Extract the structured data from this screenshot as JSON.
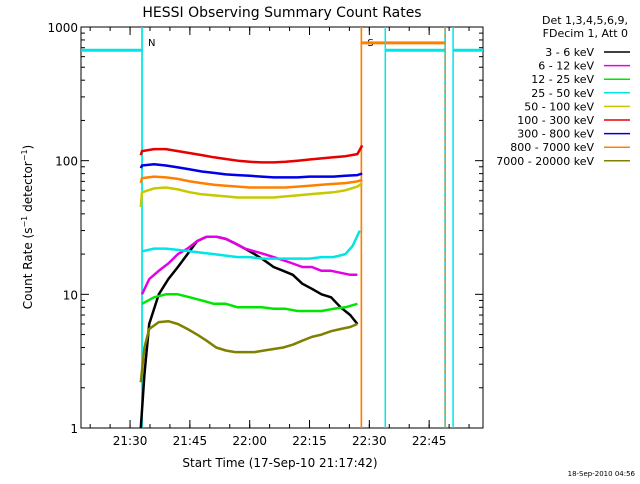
{
  "chart_data": {
    "type": "line",
    "title": "HESSI Observing Summary Count Rates",
    "xlabel": "Start Time (17-Sep-10 21:17:42)",
    "ylabel": "Count Rate (s⁻¹ detector⁻¹)",
    "ylabel_parts": {
      "main": "Count Rate (s",
      "sup1": "−1",
      "mid": " detector",
      "sup2": "−1",
      "end": ")"
    },
    "yscale": "log",
    "ylim": [
      1,
      1000
    ],
    "xlim": [
      "21:17:42",
      "22:58:30"
    ],
    "x_ticks": [
      "21:30",
      "21:45",
      "22:00",
      "22:15",
      "22:30",
      "22:45"
    ],
    "y_ticks": [
      "1",
      "10",
      "100",
      "1000"
    ],
    "legend": {
      "position": "right",
      "header": [
        "Det 1,3,4,5,6,9,",
        "FDecim 1, Att 0"
      ]
    },
    "timestamp": "18-Sep-2010 04:56",
    "series": [
      {
        "name": "3 - 6 keV",
        "color": "#000000",
        "values": [
          [
            21.545,
            1.0
          ],
          [
            21.56,
            2.5
          ],
          [
            21.58,
            6
          ],
          [
            21.62,
            10
          ],
          [
            21.66,
            13
          ],
          [
            21.7,
            16
          ],
          [
            21.74,
            20
          ],
          [
            21.78,
            25
          ],
          [
            21.82,
            27
          ],
          [
            21.86,
            27
          ],
          [
            21.9,
            26
          ],
          [
            21.94,
            24
          ],
          [
            21.98,
            22
          ],
          [
            22.02,
            20
          ],
          [
            22.06,
            18
          ],
          [
            22.1,
            16
          ],
          [
            22.14,
            15
          ],
          [
            22.18,
            14
          ],
          [
            22.22,
            12
          ],
          [
            22.26,
            11
          ],
          [
            22.3,
            10
          ],
          [
            22.34,
            9.5
          ],
          [
            22.38,
            8
          ],
          [
            22.42,
            7
          ],
          [
            22.45,
            6
          ]
        ]
      },
      {
        "name": "6 - 12 keV",
        "color": "#e600e6",
        "values": [
          [
            21.55,
            10
          ],
          [
            21.58,
            13
          ],
          [
            21.62,
            15
          ],
          [
            21.66,
            17
          ],
          [
            21.7,
            20
          ],
          [
            21.74,
            22
          ],
          [
            21.78,
            25
          ],
          [
            21.82,
            27
          ],
          [
            21.86,
            27
          ],
          [
            21.9,
            26
          ],
          [
            21.94,
            24
          ],
          [
            21.98,
            22
          ],
          [
            22.02,
            21
          ],
          [
            22.06,
            20
          ],
          [
            22.1,
            19
          ],
          [
            22.14,
            18
          ],
          [
            22.18,
            17
          ],
          [
            22.22,
            16
          ],
          [
            22.26,
            16
          ],
          [
            22.3,
            15
          ],
          [
            22.34,
            15
          ],
          [
            22.38,
            14.5
          ],
          [
            22.42,
            14
          ],
          [
            22.45,
            14
          ]
        ]
      },
      {
        "name": "12 - 25 keV",
        "color": "#00e600",
        "values": [
          [
            21.55,
            8.5
          ],
          [
            21.6,
            9.5
          ],
          [
            21.65,
            10
          ],
          [
            21.7,
            10
          ],
          [
            21.75,
            9.5
          ],
          [
            21.8,
            9
          ],
          [
            21.85,
            8.5
          ],
          [
            21.9,
            8.5
          ],
          [
            21.95,
            8
          ],
          [
            22.0,
            8
          ],
          [
            22.05,
            8
          ],
          [
            22.1,
            7.8
          ],
          [
            22.15,
            7.8
          ],
          [
            22.2,
            7.5
          ],
          [
            22.25,
            7.5
          ],
          [
            22.3,
            7.5
          ],
          [
            22.35,
            7.8
          ],
          [
            22.4,
            8
          ],
          [
            22.45,
            8.5
          ]
        ]
      },
      {
        "name": "25 - 50 keV",
        "color": "#00e6e6",
        "values": [
          [
            21.55,
            21
          ],
          [
            21.6,
            22
          ],
          [
            21.65,
            22
          ],
          [
            21.7,
            21.5
          ],
          [
            21.75,
            21
          ],
          [
            21.8,
            20.5
          ],
          [
            21.85,
            20
          ],
          [
            21.9,
            19.5
          ],
          [
            21.95,
            19
          ],
          [
            22.0,
            19
          ],
          [
            22.05,
            18.5
          ],
          [
            22.1,
            18.5
          ],
          [
            22.15,
            18.5
          ],
          [
            22.2,
            18.5
          ],
          [
            22.25,
            18.5
          ],
          [
            22.3,
            19
          ],
          [
            22.35,
            19
          ],
          [
            22.4,
            20
          ],
          [
            22.43,
            23
          ],
          [
            22.46,
            30
          ]
        ]
      },
      {
        "name": "50 - 100 keV",
        "color": "#c8c800",
        "values": [
          [
            21.545,
            45
          ],
          [
            21.55,
            58
          ],
          [
            21.6,
            62
          ],
          [
            21.65,
            63
          ],
          [
            21.7,
            61
          ],
          [
            21.75,
            58
          ],
          [
            21.8,
            56
          ],
          [
            21.85,
            55
          ],
          [
            21.9,
            54
          ],
          [
            21.95,
            53
          ],
          [
            22.0,
            53
          ],
          [
            22.05,
            53
          ],
          [
            22.1,
            53
          ],
          [
            22.15,
            54
          ],
          [
            22.2,
            55
          ],
          [
            22.25,
            56
          ],
          [
            22.3,
            57
          ],
          [
            22.35,
            58
          ],
          [
            22.4,
            60
          ],
          [
            22.45,
            64
          ],
          [
            22.47,
            68
          ]
        ]
      },
      {
        "name": "100 - 300 keV",
        "color": "#e60000",
        "values": [
          [
            21.545,
            110
          ],
          [
            21.55,
            118
          ],
          [
            21.6,
            122
          ],
          [
            21.65,
            122
          ],
          [
            21.7,
            118
          ],
          [
            21.75,
            114
          ],
          [
            21.8,
            110
          ],
          [
            21.85,
            106
          ],
          [
            21.9,
            103
          ],
          [
            21.95,
            100
          ],
          [
            22.0,
            98
          ],
          [
            22.05,
            97
          ],
          [
            22.1,
            97
          ],
          [
            22.15,
            98
          ],
          [
            22.2,
            100
          ],
          [
            22.25,
            102
          ],
          [
            22.3,
            104
          ],
          [
            22.35,
            106
          ],
          [
            22.4,
            108
          ],
          [
            22.45,
            112
          ],
          [
            22.47,
            130
          ]
        ]
      },
      {
        "name": "300 - 800 keV",
        "color": "#0000e6",
        "values": [
          [
            21.545,
            88
          ],
          [
            21.55,
            92
          ],
          [
            21.6,
            94
          ],
          [
            21.65,
            92
          ],
          [
            21.7,
            89
          ],
          [
            21.75,
            86
          ],
          [
            21.8,
            83
          ],
          [
            21.85,
            81
          ],
          [
            21.9,
            79
          ],
          [
            21.95,
            78
          ],
          [
            22.0,
            77
          ],
          [
            22.05,
            76
          ],
          [
            22.1,
            75
          ],
          [
            22.15,
            75
          ],
          [
            22.2,
            75
          ],
          [
            22.25,
            76
          ],
          [
            22.3,
            76
          ],
          [
            22.35,
            76
          ],
          [
            22.4,
            77
          ],
          [
            22.45,
            78
          ],
          [
            22.47,
            80
          ]
        ]
      },
      {
        "name": "800 - 7000 keV",
        "color": "#ff8000",
        "values": [
          [
            21.545,
            68
          ],
          [
            21.55,
            74
          ],
          [
            21.6,
            76
          ],
          [
            21.65,
            75
          ],
          [
            21.7,
            73
          ],
          [
            21.75,
            70
          ],
          [
            21.8,
            68
          ],
          [
            21.85,
            66
          ],
          [
            21.9,
            65
          ],
          [
            21.95,
            64
          ],
          [
            22.0,
            63
          ],
          [
            22.05,
            63
          ],
          [
            22.1,
            63
          ],
          [
            22.15,
            63
          ],
          [
            22.2,
            64
          ],
          [
            22.25,
            65
          ],
          [
            22.3,
            66
          ],
          [
            22.35,
            67
          ],
          [
            22.4,
            68
          ],
          [
            22.45,
            70
          ],
          [
            22.47,
            72
          ]
        ]
      },
      {
        "name": "7000 - 20000 keV",
        "color": "#808000",
        "values": [
          [
            21.545,
            2.2
          ],
          [
            21.56,
            4
          ],
          [
            21.58,
            5.5
          ],
          [
            21.62,
            6.2
          ],
          [
            21.66,
            6.3
          ],
          [
            21.7,
            6
          ],
          [
            21.74,
            5.5
          ],
          [
            21.78,
            5
          ],
          [
            21.82,
            4.5
          ],
          [
            21.86,
            4
          ],
          [
            21.9,
            3.8
          ],
          [
            21.94,
            3.7
          ],
          [
            21.98,
            3.7
          ],
          [
            22.02,
            3.7
          ],
          [
            22.06,
            3.8
          ],
          [
            22.1,
            3.9
          ],
          [
            22.14,
            4
          ],
          [
            22.18,
            4.2
          ],
          [
            22.22,
            4.5
          ],
          [
            22.26,
            4.8
          ],
          [
            22.3,
            5
          ],
          [
            22.34,
            5.3
          ],
          [
            22.38,
            5.5
          ],
          [
            22.42,
            5.7
          ],
          [
            22.45,
            6
          ]
        ]
      }
    ],
    "annotations": [
      {
        "label": "",
        "value": 670,
        "x_from": "21:17:42",
        "x_to": "21:33:00",
        "color": "#00e6e6"
      },
      {
        "label": "N",
        "x": "21:33:00",
        "color": "#00e6e6"
      },
      {
        "label": "S",
        "x": "22:28:00",
        "color": "#ff8000"
      },
      {
        "label": "",
        "value": 760,
        "x_from": "22:28:00",
        "x_to": "22:49:00",
        "color": "#ff8000"
      },
      {
        "label": "",
        "value": 670,
        "x_from": "22:34:00",
        "x_to": "22:49:00",
        "color": "#00e6e6"
      },
      {
        "label": "",
        "value": 670,
        "x_from": "22:51:00",
        "x_to": "22:58:30",
        "color": "#00e6e6"
      }
    ]
  }
}
